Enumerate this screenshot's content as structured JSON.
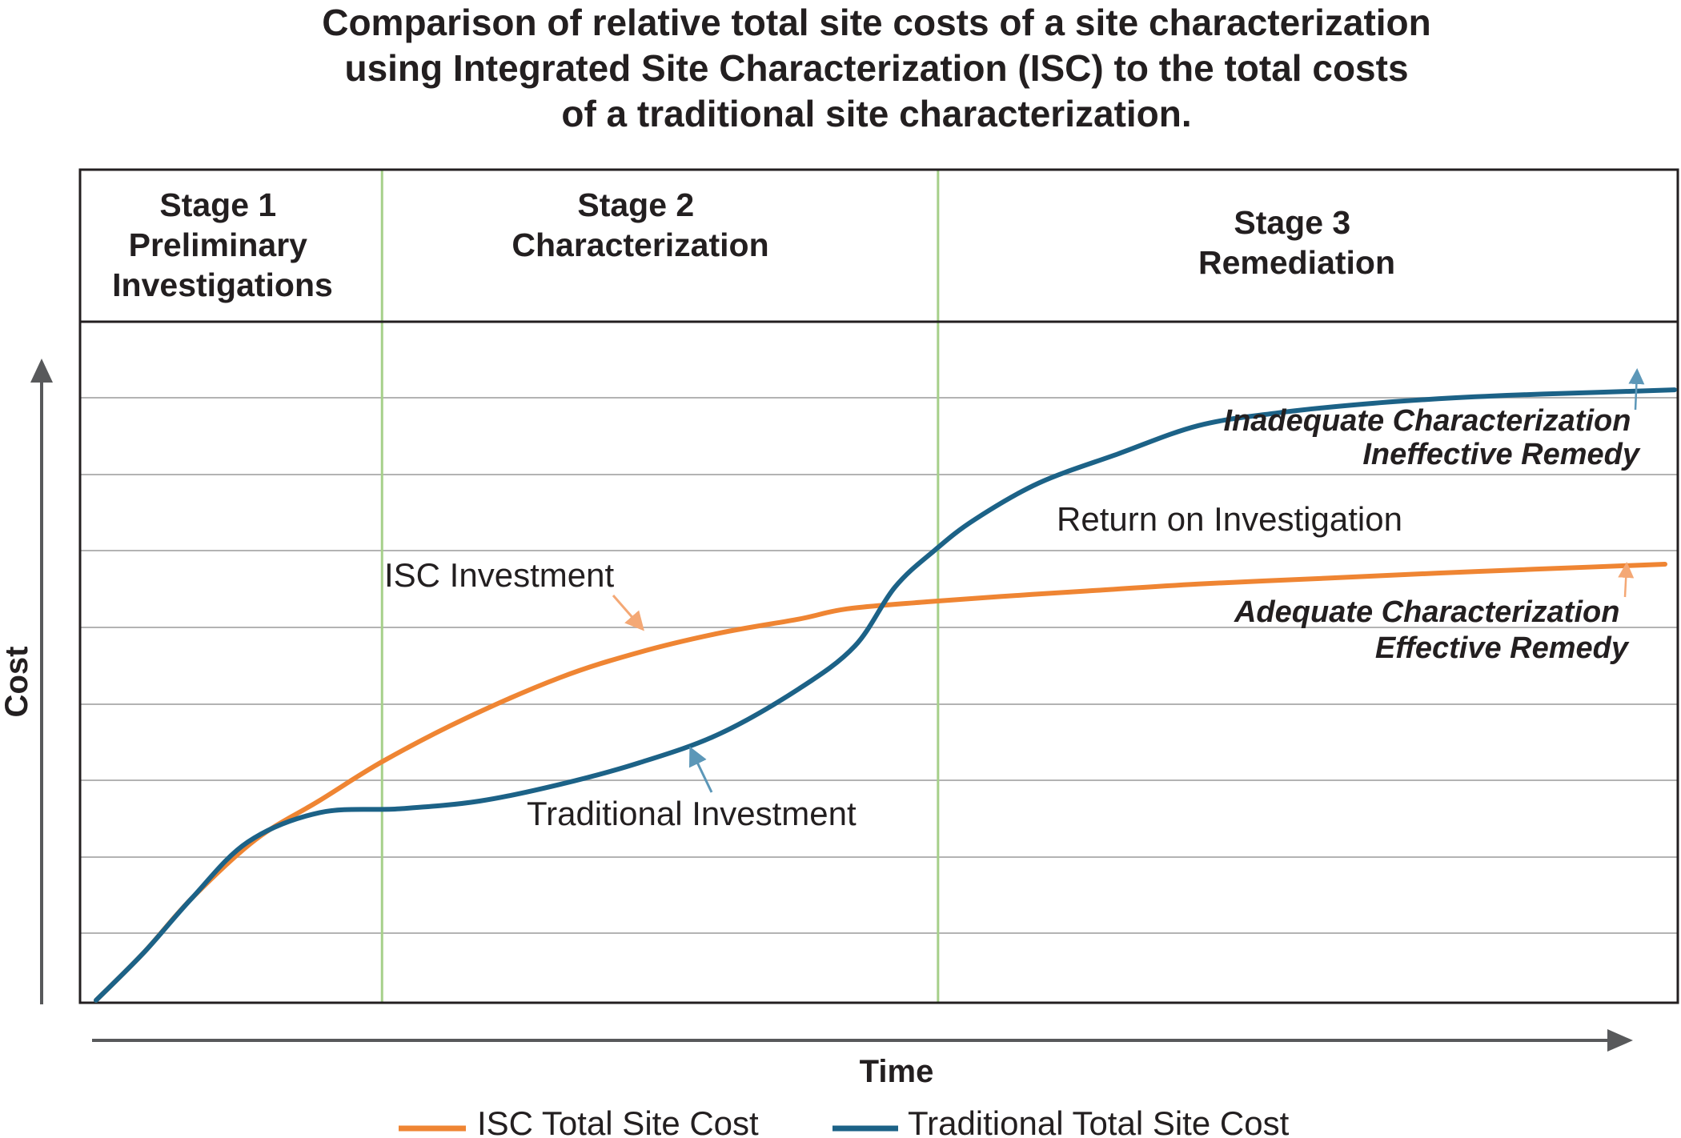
{
  "title_lines": [
    "Comparison of relative total site costs of a site characterization",
    "using Integrated Site Characterization (ISC) to the total costs",
    "of a traditional site characterization."
  ],
  "stages": [
    {
      "lines": [
        "Stage 1",
        "Preliminary",
        "Investigations"
      ]
    },
    {
      "lines": [
        "Stage 2",
        "Characterization"
      ]
    },
    {
      "lines": [
        "Stage 3",
        "Remediation"
      ]
    }
  ],
  "annotations": {
    "isc_investment": "ISC Investment",
    "traditional_investment": "Traditional Investment",
    "return_on_investigation": "Return on Investigation",
    "inadequate_1": "Inadequate Characterization",
    "inadequate_2": "Ineffective Remedy",
    "adequate_1": "Adequate Characterization",
    "adequate_2": "Effective Remedy"
  },
  "colors": {
    "isc": "#ef8533",
    "traditional": "#1c6287",
    "grid": "#b3b3b3",
    "stage_divider": "#a6d08a",
    "axis": "#58595b"
  },
  "chart_data": {
    "type": "line",
    "title": "Comparison of relative total site costs of a site characterization using Integrated Site Characterization (ISC) to the total costs of a traditional site characterization.",
    "xlabel": "Time",
    "ylabel": "Cost",
    "xlim": [
      0,
      100
    ],
    "ylim": [
      0,
      100
    ],
    "grid": true,
    "legend_position": "bottom",
    "stage_boundaries": [
      18.9,
      53.7
    ],
    "series": [
      {
        "name": "ISC Total Site Cost",
        "color": "#ef8533",
        "x": [
          1,
          4,
          7,
          11,
          15,
          19,
          24,
          30,
          35,
          40,
          45,
          48,
          53,
          58,
          63,
          70,
          78,
          85,
          91,
          99.2
        ],
        "y": [
          0,
          7.5,
          16,
          25.2,
          31.3,
          37.5,
          44,
          50.5,
          54.5,
          57.5,
          59.7,
          61.3,
          62.4,
          63.3,
          64.1,
          65.2,
          66.1,
          66.9,
          67.5,
          68.3
        ]
      },
      {
        "name": "Traditional Total Site Cost",
        "color": "#1c6287",
        "x": [
          1,
          4,
          7,
          10.5,
          15,
          20,
          25,
          30,
          35,
          40,
          45,
          48.5,
          51,
          53.5,
          56,
          60,
          65,
          70,
          75,
          80,
          85,
          90,
          95,
          99.8
        ],
        "y": [
          0,
          7.5,
          16,
          24.8,
          29.4,
          30,
          31.2,
          33.8,
          37.2,
          41.7,
          48.8,
          55.5,
          64.7,
          70.5,
          75.3,
          81,
          85.6,
          90,
          92,
          93.3,
          94.2,
          94.8,
          95.2,
          95.6
        ]
      }
    ],
    "legend": [
      "ISC Total Site Cost",
      "Traditional Total Site Cost"
    ]
  }
}
